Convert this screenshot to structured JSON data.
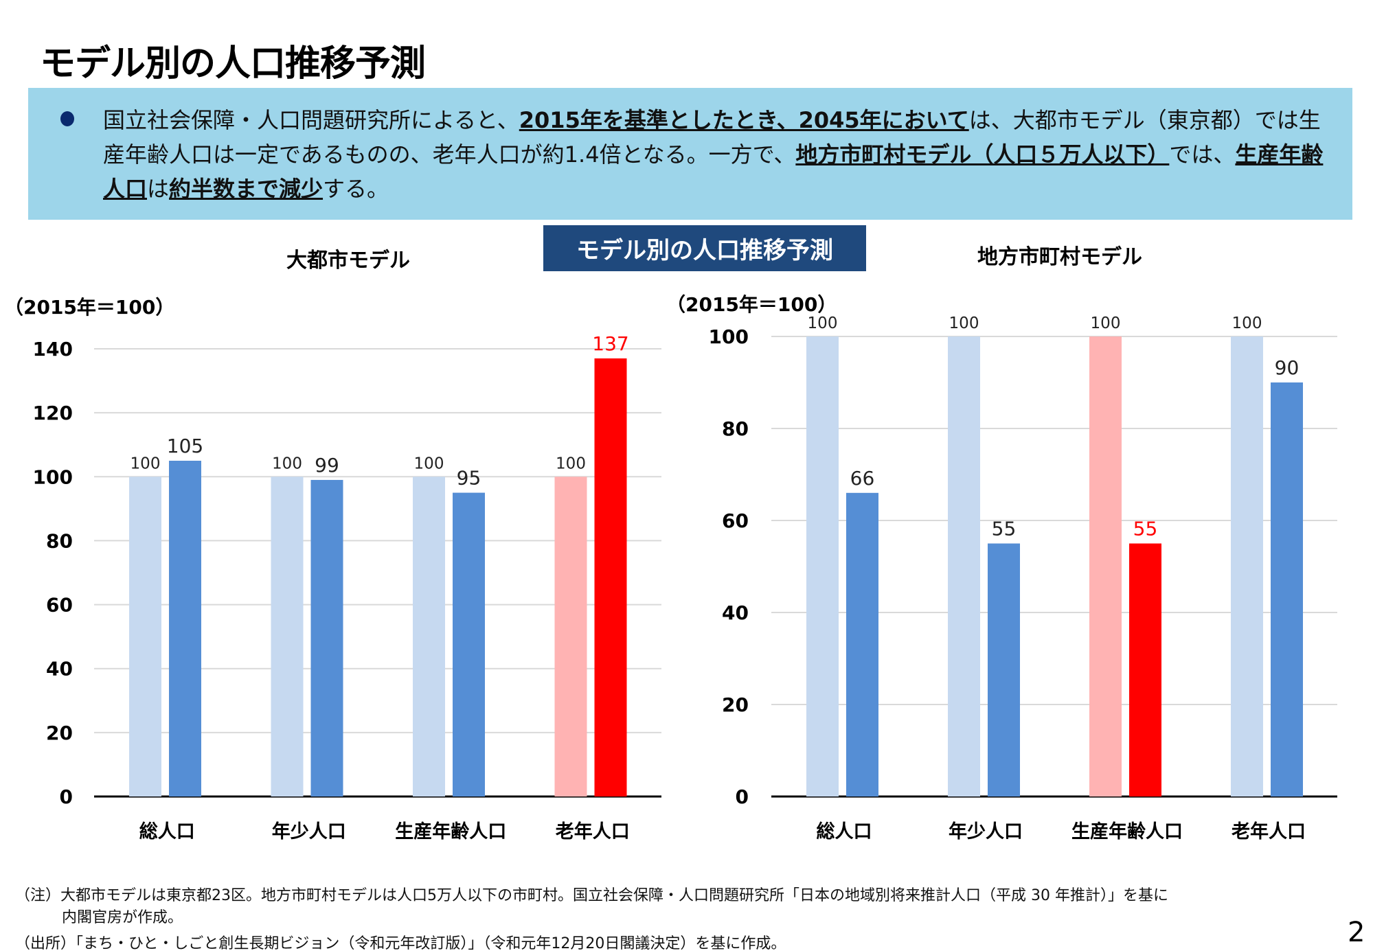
{
  "title": "モデル別の人口推移予測",
  "summary": [
    {
      "text": "国立社会保障・人口問題研究所によると、",
      "bold": false
    },
    {
      "text": "2015年を基準としたとき、2045年において",
      "bold": true
    },
    {
      "text": "は、大都市モデル（東京都）では生産年齢人口は一定であるものの、老年人口が約1.4倍となる。一方で、",
      "bold": false
    },
    {
      "text": "地方市町村モデル（人口５万人以下）",
      "bold": true
    },
    {
      "text": "では、",
      "bold": false
    },
    {
      "text": "生産年齢人口",
      "bold": true
    },
    {
      "text": "は",
      "bold": false
    },
    {
      "text": "約半数まで減少",
      "bold": true
    },
    {
      "text": "する。",
      "bold": false
    }
  ],
  "center_label": "モデル別の人口推移予測",
  "colors": {
    "base": "#c6d9f0",
    "projected": "#558ed5",
    "highlight_base": "#ffb3b3",
    "highlight_projected": "#ff0000",
    "banner": "#9dd5ea",
    "label_box": "#1f497d"
  },
  "chart_data": [
    {
      "type": "bar",
      "title": "大都市モデル",
      "ylabel": "（2015年＝100）",
      "categories": [
        "総人口",
        "年少人口",
        "生産年齢人口",
        "老年人口"
      ],
      "ylim": [
        0,
        140
      ],
      "yticks": [
        0,
        20,
        40,
        60,
        80,
        100,
        120,
        140
      ],
      "grid": true,
      "series": [
        {
          "values": [
            100,
            100,
            100,
            100
          ]
        },
        {
          "values": [
            105,
            99,
            95,
            137
          ]
        }
      ],
      "highlight_category": 3
    },
    {
      "type": "bar",
      "title": "地方市町村モデル",
      "ylabel": "（2015年＝100）",
      "categories": [
        "総人口",
        "年少人口",
        "生産年齢人口",
        "老年人口"
      ],
      "ylim": [
        0,
        100
      ],
      "yticks": [
        0,
        20,
        40,
        60,
        80,
        100
      ],
      "grid": true,
      "series": [
        {
          "values": [
            100,
            100,
            100,
            100
          ]
        },
        {
          "values": [
            66,
            55,
            55,
            90
          ]
        }
      ],
      "highlight_category": 2
    }
  ],
  "footnotes": {
    "note1": "（注）大都市モデルは東京都23区。地方市町村モデルは人口5万人以下の市町村。国立社会保障・人口問題研究所「日本の地域別将来推計人口（平成 30 年推計）」を基に",
    "note2": "内閣官房が作成。",
    "source": "（出所）「まち・ひと・しごと創生長期ビジョン（令和元年改訂版）」（令和元年12月20日閣議決定）を基に作成。"
  },
  "page_number": "2"
}
